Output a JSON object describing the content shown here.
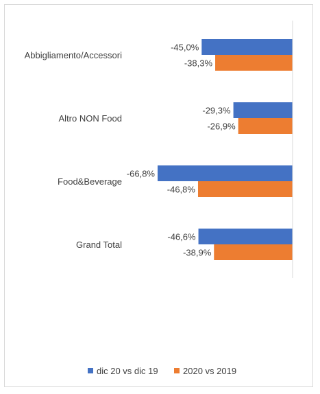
{
  "chart_data": {
    "type": "bar",
    "orientation": "horizontal",
    "categories": [
      "Abbigliamento/Accessori",
      "Altro NON Food",
      "Food&Beverage",
      "Grand Total"
    ],
    "series": [
      {
        "name": "dic 20 vs dic 19",
        "color": "#4472c4",
        "values": [
          -45.0,
          -29.3,
          -66.8,
          -46.6
        ],
        "labels": [
          "-45,0%",
          "-29,3%",
          "-66,8%",
          "-46,6%"
        ]
      },
      {
        "name": "2020 vs 2019",
        "color": "#ed7d31",
        "values": [
          -38.3,
          -26.9,
          -46.8,
          -38.9
        ],
        "labels": [
          "-38,3%",
          "-26,9%",
          "-46,8%",
          "-38,9%"
        ]
      }
    ],
    "xlim": [
      -66.8,
      0
    ],
    "grid": false,
    "legend_position": "bottom"
  }
}
